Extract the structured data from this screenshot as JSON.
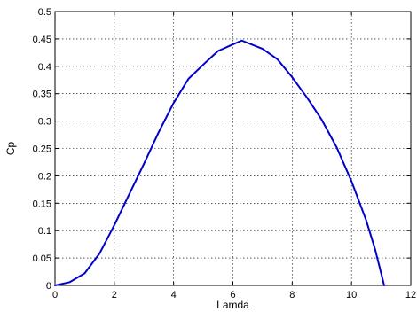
{
  "chart_data": {
    "type": "line",
    "title": "",
    "xlabel": "Lamda",
    "ylabel": "Cp",
    "xlim": [
      0,
      12
    ],
    "ylim": [
      0,
      0.5
    ],
    "x_ticks": [
      0,
      2,
      4,
      6,
      8,
      10,
      12
    ],
    "y_ticks": [
      0,
      0.05,
      0.1,
      0.15,
      0.2,
      0.25,
      0.3,
      0.35,
      0.4,
      0.45,
      0.5
    ],
    "x_tick_labels": [
      "0",
      "2",
      "4",
      "6",
      "8",
      "10",
      "12"
    ],
    "y_tick_labels": [
      "0",
      "0.05",
      "0.1",
      "0.15",
      "0.2",
      "0.25",
      "0.3",
      "0.35",
      "0.4",
      "0.45",
      "0.5"
    ],
    "grid": true,
    "legend": "none",
    "series": [
      {
        "color": "#0000cc",
        "x": [
          0,
          0.5,
          1.0,
          1.5,
          2.0,
          2.5,
          3.0,
          3.5,
          4.0,
          4.5,
          5.0,
          5.5,
          6.0,
          6.3,
          7.0,
          7.5,
          8.0,
          8.5,
          9.0,
          9.5,
          10.0,
          10.5,
          10.8,
          11.0,
          11.1
        ],
        "y": [
          0,
          0.006,
          0.022,
          0.058,
          0.11,
          0.166,
          0.222,
          0.28,
          0.333,
          0.377,
          0.403,
          0.428,
          0.44,
          0.447,
          0.432,
          0.413,
          0.38,
          0.343,
          0.302,
          0.252,
          0.19,
          0.118,
          0.065,
          0.022,
          0.0
        ]
      }
    ]
  }
}
